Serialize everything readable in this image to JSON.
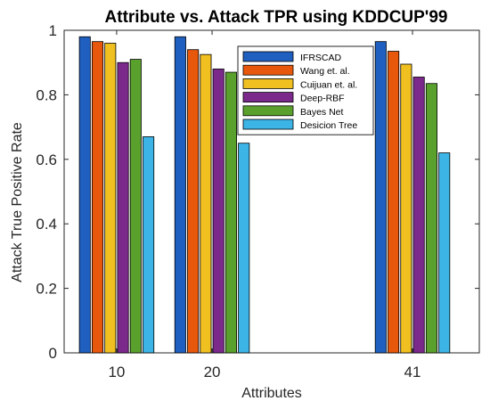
{
  "chart_data": {
    "type": "bar",
    "title": "Attribute vs. Attack TPR using KDDCUP'99",
    "xlabel": "Attributes",
    "ylabel": "Attack True Positive Rate",
    "categories": [
      "10",
      "20",
      "41"
    ],
    "x": [
      10,
      20,
      41
    ],
    "xlim": [
      4.5,
      48
    ],
    "ylim": [
      0,
      1
    ],
    "yticks": [
      "0",
      "0.2",
      "0.4",
      "0.6",
      "0.8",
      "1"
    ],
    "grid": false,
    "legend_position": "top-right",
    "series": [
      {
        "name": "IFRSCAD",
        "color": "#1f5fbf",
        "values": [
          0.98,
          0.98,
          0.965
        ]
      },
      {
        "name": "Wang et. al.",
        "color": "#e8580c",
        "values": [
          0.965,
          0.94,
          0.935
        ]
      },
      {
        "name": "Cuijuan et. al.",
        "color": "#f0c020",
        "values": [
          0.96,
          0.925,
          0.895
        ]
      },
      {
        "name": "Deep-RBF",
        "color": "#7b2a8c",
        "values": [
          0.9,
          0.88,
          0.855
        ]
      },
      {
        "name": "Bayes Net",
        "color": "#5aa02c",
        "values": [
          0.91,
          0.87,
          0.835
        ]
      },
      {
        "name": "Desicion Tree",
        "color": "#3cb4e6",
        "values": [
          0.67,
          0.65,
          0.62
        ]
      }
    ]
  }
}
